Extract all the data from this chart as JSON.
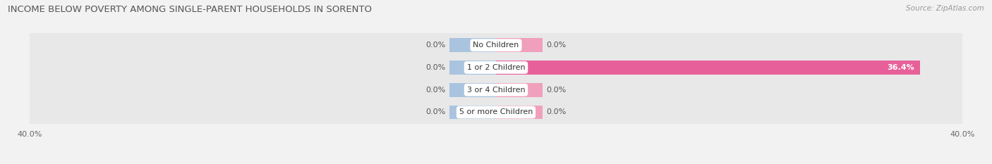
{
  "title": "INCOME BELOW POVERTY AMONG SINGLE-PARENT HOUSEHOLDS IN SORENTO",
  "source": "Source: ZipAtlas.com",
  "categories": [
    "No Children",
    "1 or 2 Children",
    "3 or 4 Children",
    "5 or more Children"
  ],
  "single_father": [
    0.0,
    0.0,
    0.0,
    0.0
  ],
  "single_mother": [
    0.0,
    36.4,
    0.0,
    0.0
  ],
  "father_color": "#aac4e0",
  "mother_color": "#f0a0bc",
  "mother_color_dark": "#e8609a",
  "background_color": "#f2f2f2",
  "row_color": "#e8e8e8",
  "title_fontsize": 9.5,
  "source_fontsize": 7.5,
  "label_fontsize": 8,
  "axis_max": 40.0,
  "stub_size": 4.0
}
